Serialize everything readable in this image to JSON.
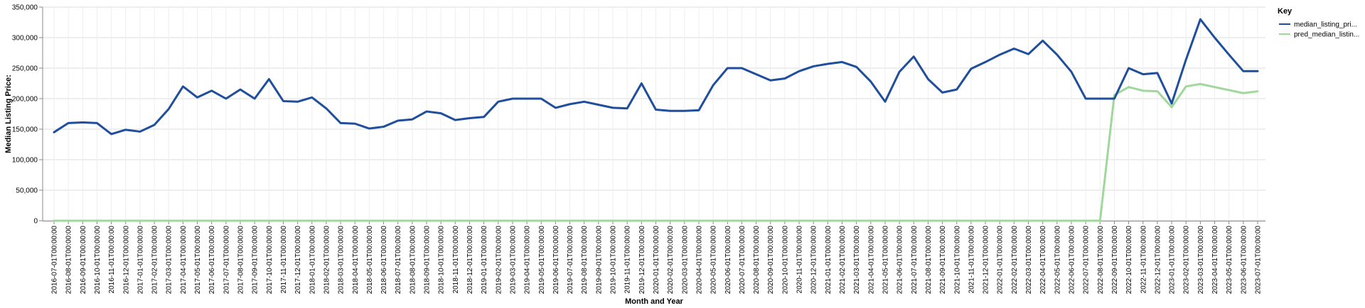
{
  "chart_data": {
    "type": "line",
    "xlabel": "Month and Year",
    "ylabel": "Median Listing Price:",
    "ylim": [
      0,
      350000
    ],
    "y_ticks": [
      "0",
      "50,000",
      "100,000",
      "150,000",
      "200,000",
      "250,000",
      "300,000",
      "350,000"
    ],
    "grid": true,
    "legend_position": "top-right",
    "legend_title": "Key",
    "categories": [
      "2016-07-01T00:00:00",
      "2016-08-01T00:00:00",
      "2016-09-01T00:00:00",
      "2016-10-01T00:00:00",
      "2016-11-01T00:00:00",
      "2016-12-01T00:00:00",
      "2017-01-01T00:00:00",
      "2017-02-01T00:00:00",
      "2017-03-01T00:00:00",
      "2017-04-01T00:00:00",
      "2017-05-01T00:00:00",
      "2017-06-01T00:00:00",
      "2017-07-01T00:00:00",
      "2017-08-01T00:00:00",
      "2017-09-01T00:00:00",
      "2017-10-01T00:00:00",
      "2017-11-01T00:00:00",
      "2017-12-01T00:00:00",
      "2018-01-01T00:00:00",
      "2018-02-01T00:00:00",
      "2018-03-01T00:00:00",
      "2018-04-01T00:00:00",
      "2018-05-01T00:00:00",
      "2018-06-01T00:00:00",
      "2018-07-01T00:00:00",
      "2018-08-01T00:00:00",
      "2018-09-01T00:00:00",
      "2018-10-01T00:00:00",
      "2018-11-01T00:00:00",
      "2018-12-01T00:00:00",
      "2019-01-01T00:00:00",
      "2019-02-01T00:00:00",
      "2019-03-01T00:00:00",
      "2019-04-01T00:00:00",
      "2019-05-01T00:00:00",
      "2019-06-01T00:00:00",
      "2019-07-01T00:00:00",
      "2019-08-01T00:00:00",
      "2019-09-01T00:00:00",
      "2019-10-01T00:00:00",
      "2019-11-01T00:00:00",
      "2019-12-01T00:00:00",
      "2020-01-01T00:00:00",
      "2020-02-01T00:00:00",
      "2020-03-01T00:00:00",
      "2020-04-01T00:00:00",
      "2020-05-01T00:00:00",
      "2020-06-01T00:00:00",
      "2020-07-01T00:00:00",
      "2020-08-01T00:00:00",
      "2020-09-01T00:00:00",
      "2020-10-01T00:00:00",
      "2020-11-01T00:00:00",
      "2020-12-01T00:00:00",
      "2021-01-01T00:00:00",
      "2021-02-01T00:00:00",
      "2021-03-01T00:00:00",
      "2021-04-01T00:00:00",
      "2021-05-01T00:00:00",
      "2021-06-01T00:00:00",
      "2021-07-01T00:00:00",
      "2021-08-01T00:00:00",
      "2021-09-01T00:00:00",
      "2021-10-01T00:00:00",
      "2021-11-01T00:00:00",
      "2021-12-01T00:00:00",
      "2022-01-01T00:00:00",
      "2022-02-01T00:00:00",
      "2022-03-01T00:00:00",
      "2022-04-01T00:00:00",
      "2022-05-01T00:00:00",
      "2022-06-01T00:00:00",
      "2022-07-01T00:00:00",
      "2022-08-01T00:00:00",
      "2022-09-01T00:00:00",
      "2022-10-01T00:00:00",
      "2022-11-01T00:00:00",
      "2022-12-01T00:00:00",
      "2023-01-01T00:00:00",
      "2023-02-01T00:00:00",
      "2023-03-01T00:00:00",
      "2023-04-01T00:00:00",
      "2023-05-01T00:00:00",
      "2023-06-01T00:00:00",
      "2023-07-01T00:00:00"
    ],
    "series": [
      {
        "name": "median_listing_pri...",
        "color": "#1f4e9c",
        "values": [
          145000,
          160000,
          161000,
          160000,
          142000,
          149000,
          146000,
          157000,
          183000,
          220000,
          202000,
          213000,
          200000,
          215000,
          200000,
          232000,
          196000,
          195000,
          202000,
          184000,
          160000,
          159000,
          151000,
          154000,
          164000,
          166000,
          179000,
          176000,
          165000,
          168000,
          170000,
          195000,
          200000,
          200000,
          200000,
          185000,
          191000,
          195000,
          190000,
          185000,
          184000,
          225000,
          182000,
          180000,
          180000,
          181000,
          222000,
          250000,
          250000,
          240000,
          230000,
          233000,
          245000,
          253000,
          257000,
          260000,
          252000,
          228000,
          195000,
          244000,
          269000,
          232000,
          210000,
          215000,
          249000,
          260000,
          272000,
          282000,
          273000,
          295000,
          272000,
          244000,
          200000,
          200000,
          200000,
          250000,
          240000,
          242000,
          192000,
          264000,
          330000,
          300000,
          272000,
          245000,
          245000
        ]
      },
      {
        "name": "pred_median_listin...",
        "color": "#9fd89a",
        "values": [
          0,
          0,
          0,
          0,
          0,
          0,
          0,
          0,
          0,
          0,
          0,
          0,
          0,
          0,
          0,
          0,
          0,
          0,
          0,
          0,
          0,
          0,
          0,
          0,
          0,
          0,
          0,
          0,
          0,
          0,
          0,
          0,
          0,
          0,
          0,
          0,
          0,
          0,
          0,
          0,
          0,
          0,
          0,
          0,
          0,
          0,
          0,
          0,
          0,
          0,
          0,
          0,
          0,
          0,
          0,
          0,
          0,
          0,
          0,
          0,
          0,
          0,
          0,
          0,
          0,
          0,
          0,
          0,
          0,
          0,
          0,
          0,
          0,
          0,
          206000,
          219000,
          213000,
          212000,
          186000,
          220000,
          224000,
          219000,
          214000,
          209000,
          212000
        ]
      }
    ]
  }
}
